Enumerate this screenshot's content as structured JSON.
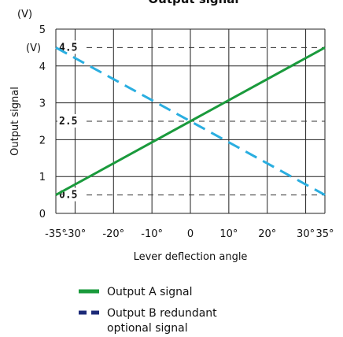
{
  "chart_data": {
    "type": "line",
    "title": "Output signal",
    "xlabel": "Lever deflection angle",
    "ylabel": "Output signal",
    "y_unit_top": "(V)",
    "y_unit_side": "(V)",
    "xlim": [
      -35,
      35
    ],
    "ylim": [
      0,
      5
    ],
    "grid": true,
    "x_ticks": [
      -35,
      -30,
      -20,
      -10,
      0,
      10,
      20,
      30,
      35
    ],
    "x_tick_labels": [
      "-35°",
      "-30°",
      "-20°",
      "-10°",
      "0",
      "10°",
      "20°",
      "30°",
      "35°"
    ],
    "y_ticks": [
      0,
      1,
      2,
      3,
      4,
      5
    ],
    "y_tick_labels": [
      "0",
      "1",
      "2",
      "3",
      "4",
      "5"
    ],
    "reference_lines": [
      {
        "value": 4.5,
        "label": "4.5"
      },
      {
        "value": 2.5,
        "label": "2.5"
      },
      {
        "value": 0.5,
        "label": "0.5"
      }
    ],
    "series": [
      {
        "name": "Output A signal",
        "color": "#1a9a3c",
        "style": "solid",
        "x": [
          -35,
          35
        ],
        "y": [
          0.5,
          4.5
        ]
      },
      {
        "name": "Output B redundant optional signal",
        "color": "#2aaee0",
        "style": "dashed",
        "x": [
          -35,
          35
        ],
        "y": [
          4.5,
          0.5
        ]
      }
    ],
    "legend": {
      "placement": "bottom",
      "items": [
        {
          "lines": [
            "Output A signal"
          ],
          "color": "#1a9a3c",
          "style": "solid"
        },
        {
          "lines": [
            "Output B redundant",
            "optional signal"
          ],
          "color": "#1c2a78",
          "style": "dashed"
        }
      ]
    }
  }
}
